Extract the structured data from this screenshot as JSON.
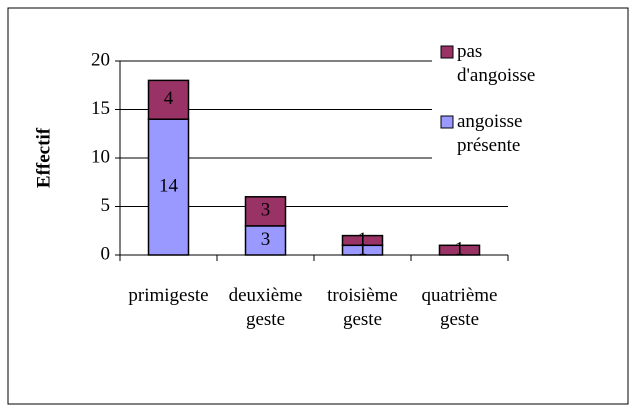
{
  "chart_data": {
    "type": "bar",
    "stacked": true,
    "y_label": "Effectif",
    "categories": [
      "primigeste",
      "deuxième geste",
      "troisième geste",
      "quatrième geste"
    ],
    "series": [
      {
        "name": "angoisse présente",
        "color": "#9999ff",
        "values": [
          14,
          3,
          1,
          0
        ]
      },
      {
        "name": "pas d'angoisse",
        "color": "#993366",
        "values": [
          4,
          3,
          1,
          1
        ]
      }
    ],
    "ylim": [
      0,
      20
    ],
    "yticks": [
      0,
      5,
      10,
      15,
      20
    ],
    "grid": true,
    "legend": "right"
  }
}
